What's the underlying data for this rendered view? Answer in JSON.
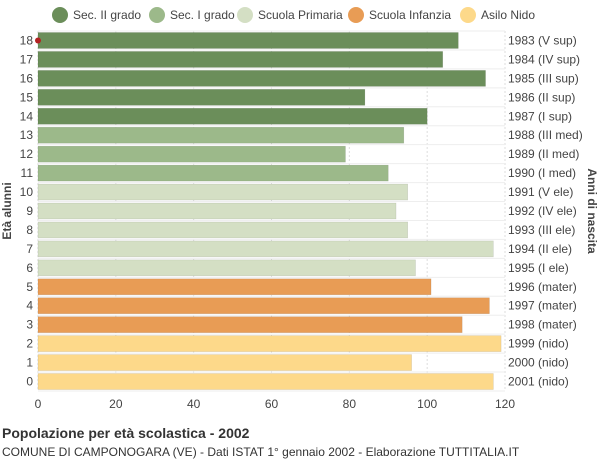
{
  "chart_data": {
    "type": "bar",
    "orientation": "horizontal",
    "title": "Popolazione per età scolastica - 2002",
    "subtitle": "COMUNE DI CAMPONOGARA (VE) - Dati ISTAT 1° gennaio 2002 - Elaborazione TUTTITALIA.IT",
    "ylabel_left": "Età alunni",
    "ylabel_right": "Anni di nascita",
    "xlim": [
      0,
      120
    ],
    "xticks": [
      0,
      20,
      40,
      60,
      80,
      100,
      120
    ],
    "grid": true,
    "legend_position": "top",
    "legend": [
      {
        "name": "Sec. II grado",
        "color": "#6b8e5a"
      },
      {
        "name": "Sec. I grado",
        "color": "#9cb98a"
      },
      {
        "name": "Scuola Primaria",
        "color": "#d4dfc4"
      },
      {
        "name": "Scuola Infanzia",
        "color": "#e89c55"
      },
      {
        "name": "Asilo Nido",
        "color": "#fdd98a"
      }
    ],
    "categories": [
      "18",
      "17",
      "16",
      "15",
      "14",
      "13",
      "12",
      "11",
      "10",
      "9",
      "8",
      "7",
      "6",
      "5",
      "4",
      "3",
      "2",
      "1",
      "0"
    ],
    "birth_years": [
      "1983 (V sup)",
      "1984 (IV sup)",
      "1985 (III sup)",
      "1986 (II sup)",
      "1987 (I sup)",
      "1988 (III med)",
      "1989 (II med)",
      "1990 (I med)",
      "1991 (V ele)",
      "1992 (IV ele)",
      "1993 (III ele)",
      "1994 (II ele)",
      "1995 (I ele)",
      "1996 (mater)",
      "1997 (mater)",
      "1998 (mater)",
      "1999 (nido)",
      "2000 (nido)",
      "2001 (nido)"
    ],
    "values": [
      108,
      104,
      115,
      84,
      100,
      94,
      79,
      90,
      95,
      92,
      95,
      117,
      97,
      101,
      116,
      109,
      119,
      96,
      117
    ],
    "groups": [
      0,
      0,
      0,
      0,
      0,
      1,
      1,
      1,
      2,
      2,
      2,
      2,
      2,
      3,
      3,
      3,
      4,
      4,
      4
    ]
  }
}
